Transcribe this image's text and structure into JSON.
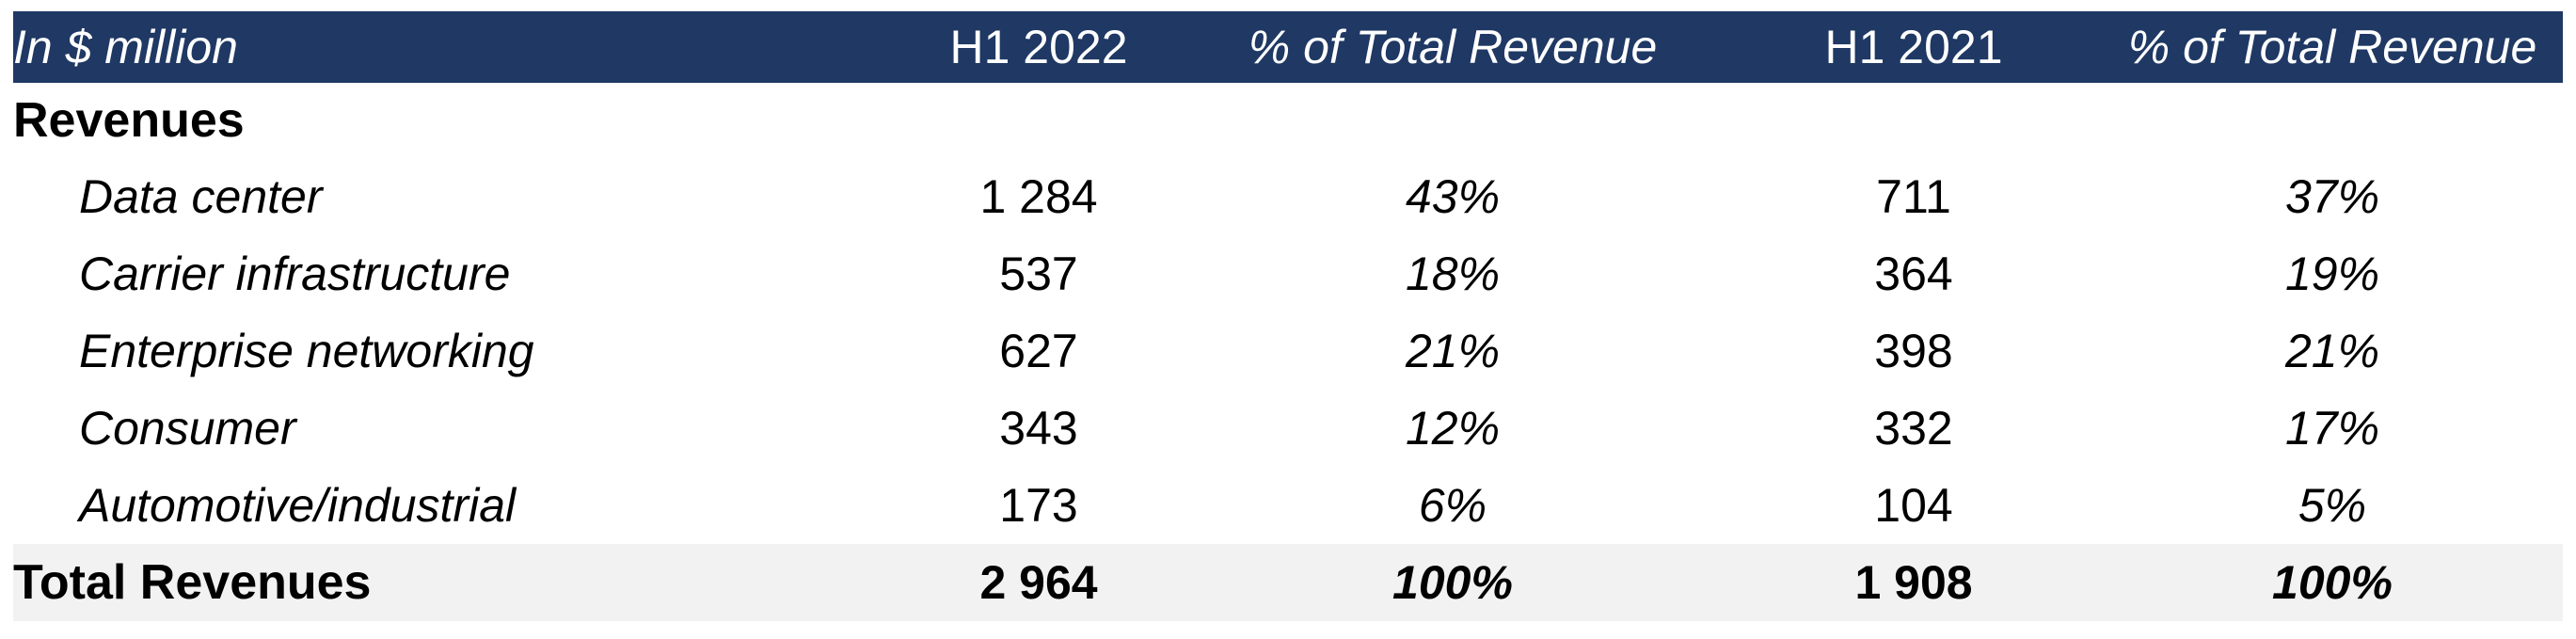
{
  "header": {
    "label": "In $ million",
    "col1": "H1 2022",
    "col2": "% of Total Revenue",
    "col3": "H1 2021",
    "col4": "% of Total Revenue"
  },
  "colors": {
    "header_bg": "#1f3864",
    "header_text": "#ffffff",
    "total_bg": "#f2f2f2"
  },
  "section": {
    "title": "Revenues"
  },
  "rows": [
    {
      "label": "Data center",
      "h1_2022": "1 284",
      "pct_2022": "43%",
      "h1_2021": "711",
      "pct_2021": "37%"
    },
    {
      "label": "Carrier infrastructure",
      "h1_2022": "537",
      "pct_2022": "18%",
      "h1_2021": "364",
      "pct_2021": "19%"
    },
    {
      "label": "Enterprise networking",
      "h1_2022": "627",
      "pct_2022": "21%",
      "h1_2021": "398",
      "pct_2021": "21%"
    },
    {
      "label": "Consumer",
      "h1_2022": "343",
      "pct_2022": "12%",
      "h1_2021": "332",
      "pct_2021": "17%"
    },
    {
      "label": "Automotive/industrial",
      "h1_2022": "173",
      "pct_2022": "6%",
      "h1_2021": "104",
      "pct_2021": "5%"
    }
  ],
  "total": {
    "label": "Total Revenues",
    "h1_2022": "2 964",
    "pct_2022": "100%",
    "h1_2021": "1 908",
    "pct_2021": "100%"
  }
}
